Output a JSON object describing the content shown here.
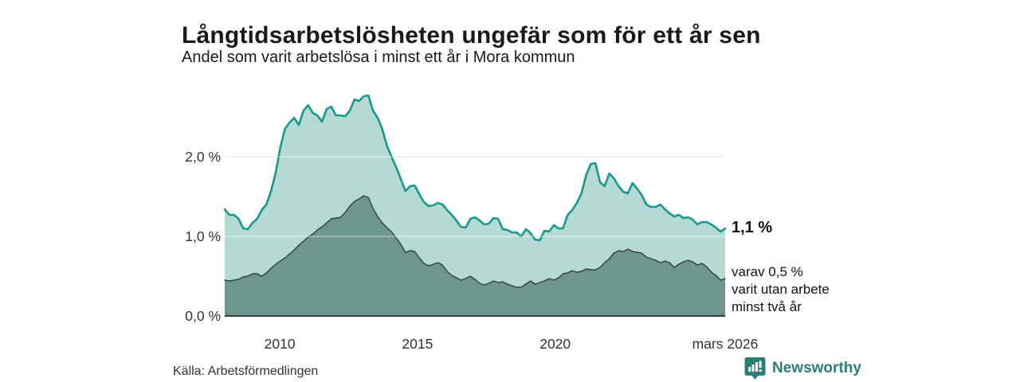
{
  "title": "Långtidsarbetslösheten ungefär som för ett år sen",
  "subtitle": "Andel som varit arbetslösa i minst ett år i Mora kommun",
  "source": "Källa: Arbetsförmedlingen",
  "logo": {
    "text": "Newsworthy",
    "icon": "speech-bubble-barchart"
  },
  "annotations": {
    "total_end_label": "1,1 %",
    "dark_end_label_lines": [
      "varav 0,5 %",
      "varit utan arbete",
      "minst två år"
    ]
  },
  "colors": {
    "accent_line": "#18998b",
    "light_fill": "#b5dad3",
    "dark_fill": "#6f968e",
    "dark_line": "#333f3c",
    "grid": "#dcdcdc",
    "grid_over_fill": "rgba(255,255,255,0.5)",
    "baseline": "#3b3b3b",
    "axis_text": "#333333",
    "logo_teal": "#2d7e79"
  },
  "chart_data": {
    "type": "area",
    "title": "Långtidsarbetslösheten ungefär som för ett år sen",
    "subtitle": "Andel som varit arbetslösa i minst ett år i Mora kommun",
    "unit": "%",
    "x_start": 2008.0,
    "x_end": 2026.17,
    "points_interval_months": 2,
    "ylim": [
      0,
      2.9
    ],
    "grid": "horizontal",
    "y_ticks": [
      {
        "label": "0,0 %",
        "value": 0
      },
      {
        "label": "1,0 %",
        "value": 1
      },
      {
        "label": "2,0 %",
        "value": 2
      }
    ],
    "x_ticks": [
      {
        "label": "2010",
        "year": 2010
      },
      {
        "label": "2015",
        "year": 2015
      },
      {
        "label": "2020",
        "year": 2020
      },
      {
        "label": "mars 2026",
        "year": 2026.17
      }
    ],
    "series": [
      {
        "name": "Andel arbetslösa minst ett år (totalt)",
        "end_value": 1.1,
        "end_value_label": "1,1 %",
        "line_color": "#18998b",
        "fill_color": "#b5dad3",
        "line_width": 2.6,
        "values": [
          1.34,
          1.27,
          1.27,
          1.22,
          1.1,
          1.09,
          1.17,
          1.22,
          1.33,
          1.4,
          1.57,
          1.8,
          2.12,
          2.35,
          2.43,
          2.49,
          2.4,
          2.58,
          2.65,
          2.55,
          2.52,
          2.44,
          2.6,
          2.63,
          2.52,
          2.52,
          2.51,
          2.58,
          2.72,
          2.7,
          2.76,
          2.77,
          2.58,
          2.49,
          2.35,
          2.14,
          2.0,
          1.87,
          1.72,
          1.57,
          1.63,
          1.64,
          1.53,
          1.43,
          1.38,
          1.39,
          1.42,
          1.4,
          1.33,
          1.27,
          1.2,
          1.12,
          1.11,
          1.22,
          1.24,
          1.2,
          1.15,
          1.16,
          1.23,
          1.22,
          1.09,
          1.08,
          1.05,
          1.05,
          1.0,
          1.09,
          1.04,
          0.96,
          0.95,
          1.07,
          1.06,
          1.14,
          1.1,
          1.1,
          1.27,
          1.33,
          1.42,
          1.54,
          1.77,
          1.91,
          1.92,
          1.68,
          1.63,
          1.79,
          1.73,
          1.63,
          1.56,
          1.54,
          1.67,
          1.6,
          1.52,
          1.4,
          1.37,
          1.37,
          1.4,
          1.34,
          1.29,
          1.25,
          1.27,
          1.23,
          1.24,
          1.21,
          1.15,
          1.18,
          1.18,
          1.15,
          1.11,
          1.06,
          1.1
        ]
      },
      {
        "name": "varav utan arbete minst två år",
        "end_value": 0.5,
        "end_value_label": "varav 0,5 % varit utan arbete minst två år",
        "line_color": "#333f3c",
        "fill_color": "#6f968e",
        "line_width": 1.4,
        "values": [
          0.45,
          0.44,
          0.45,
          0.46,
          0.49,
          0.5,
          0.53,
          0.53,
          0.5,
          0.54,
          0.6,
          0.65,
          0.69,
          0.73,
          0.78,
          0.83,
          0.89,
          0.94,
          0.99,
          1.03,
          1.08,
          1.12,
          1.17,
          1.22,
          1.23,
          1.24,
          1.3,
          1.38,
          1.44,
          1.47,
          1.51,
          1.49,
          1.35,
          1.25,
          1.17,
          1.11,
          1.06,
          0.98,
          0.9,
          0.8,
          0.82,
          0.81,
          0.73,
          0.66,
          0.63,
          0.65,
          0.67,
          0.64,
          0.56,
          0.51,
          0.48,
          0.45,
          0.47,
          0.5,
          0.46,
          0.41,
          0.39,
          0.41,
          0.44,
          0.42,
          0.43,
          0.4,
          0.38,
          0.36,
          0.36,
          0.4,
          0.44,
          0.4,
          0.42,
          0.44,
          0.47,
          0.45,
          0.48,
          0.53,
          0.54,
          0.57,
          0.55,
          0.56,
          0.59,
          0.58,
          0.58,
          0.61,
          0.67,
          0.72,
          0.79,
          0.82,
          0.81,
          0.84,
          0.81,
          0.8,
          0.79,
          0.74,
          0.72,
          0.7,
          0.67,
          0.69,
          0.67,
          0.61,
          0.65,
          0.68,
          0.7,
          0.68,
          0.64,
          0.66,
          0.62,
          0.55,
          0.51,
          0.45,
          0.47
        ]
      }
    ]
  }
}
